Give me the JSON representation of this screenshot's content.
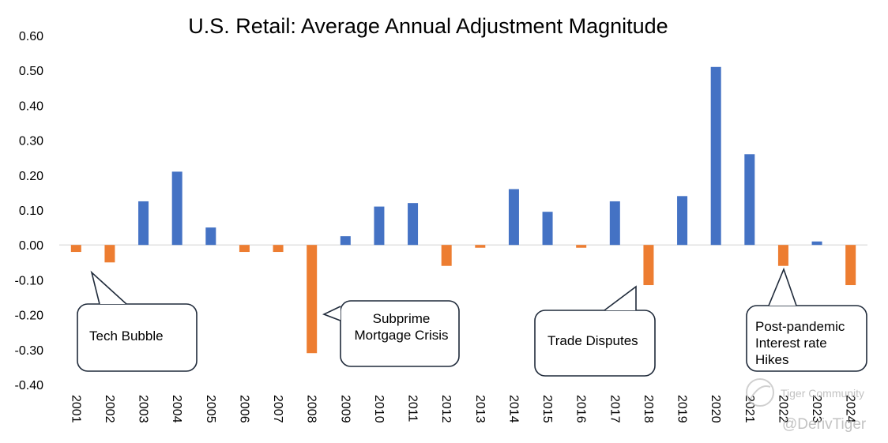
{
  "chart_data": {
    "type": "bar",
    "title": "U.S. Retail: Average Annual Adjustment Magnitude",
    "xlabel": "",
    "ylabel": "",
    "ylim": [
      -0.4,
      0.6
    ],
    "yticks": [
      "0.60",
      "0.50",
      "0.40",
      "0.30",
      "0.20",
      "0.10",
      "0.00",
      "-0.10",
      "-0.20",
      "-0.30",
      "-0.40"
    ],
    "ytick_values": [
      0.6,
      0.5,
      0.4,
      0.3,
      0.2,
      0.1,
      0.0,
      -0.1,
      -0.2,
      -0.3,
      -0.4
    ],
    "categories": [
      "2001",
      "2002",
      "2003",
      "2004",
      "2005",
      "2006",
      "2007",
      "2008",
      "2009",
      "2010",
      "2011",
      "2012",
      "2013",
      "2014",
      "2015",
      "2016",
      "2017",
      "2018",
      "2019",
      "2020",
      "2021",
      "2022",
      "2023",
      "2024"
    ],
    "values": [
      -0.02,
      -0.05,
      0.125,
      0.21,
      0.05,
      -0.02,
      -0.02,
      -0.31,
      0.025,
      0.11,
      0.12,
      -0.06,
      -0.008,
      0.16,
      0.095,
      -0.008,
      0.125,
      -0.115,
      0.14,
      0.51,
      0.26,
      -0.06,
      0.01,
      -0.115
    ],
    "colors": {
      "positive": "#4472C4",
      "negative": "#ED7D31"
    },
    "annotations": [
      {
        "lines": [
          "Tech Bubble"
        ],
        "year": "2001"
      },
      {
        "lines": [
          "Subprime",
          "Mortgage Crisis"
        ],
        "year": "2008"
      },
      {
        "lines": [
          "Trade Disputes"
        ],
        "year": "2018"
      },
      {
        "lines": [
          "Post-pandemic",
          "Interest rate",
          "Hikes"
        ],
        "year": "2022"
      }
    ]
  },
  "watermark": {
    "brand": "Tiger Community",
    "handle": "@DerivTiger"
  }
}
